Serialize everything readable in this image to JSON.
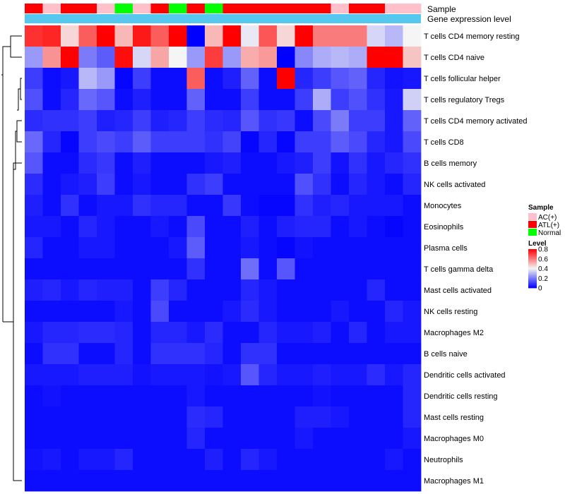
{
  "chart_data": {
    "type": "heatmap",
    "title": "",
    "annotation_labels": {
      "sample": "Sample",
      "gene_expression": "Gene expression level"
    },
    "columns": 22,
    "sample_groups": [
      "ATL(+)",
      "AC(+)",
      "ATL(+)",
      "ATL(+)",
      "AC(+)",
      "Normal",
      "AC(+)",
      "ATL(+)",
      "Normal",
      "ATL(+)",
      "Normal",
      "ATL(+)",
      "ATL(+)",
      "ATL(+)",
      "ATL(+)",
      "ATL(+)",
      "ATL(+)",
      "AC(+)",
      "ATL(+)",
      "ATL(+)",
      "AC(+)",
      "AC(+)"
    ],
    "rows": [
      "T cells CD4 memory resting",
      "T cells CD4 naive",
      "T cells follicular helper",
      "T cells regulatory  Tregs",
      "T cells CD4 memory activated",
      "T cells CD8",
      "B cells memory",
      "NK cells activated",
      "Monocytes",
      "Eosinophils",
      "Plasma cells",
      "T cells gamma delta",
      "Mast cells activated",
      "NK cells resting",
      "Macrophages M2",
      "B cells naive",
      "Dendritic cells activated",
      "Dendritic cells resting",
      "Mast cells resting",
      "Macrophages M0",
      "Neutrophils",
      "Macrophages M1"
    ],
    "values": [
      [
        0.72,
        0.74,
        0.45,
        0.65,
        0.8,
        0.5,
        0.76,
        0.65,
        0.8,
        0.0,
        0.5,
        0.8,
        0.38,
        0.66,
        0.45,
        0.8,
        0.6,
        0.6,
        0.6,
        0.35,
        0.3,
        0.4
      ],
      [
        0.25,
        0.56,
        0.8,
        0.2,
        0.15,
        0.78,
        0.35,
        0.53,
        0.4,
        0.25,
        0.7,
        0.25,
        0.52,
        0.55,
        0.0,
        0.22,
        0.28,
        0.3,
        0.28,
        0.8,
        0.8,
        0.48
      ],
      [
        0.1,
        0.02,
        0.04,
        0.3,
        0.25,
        0.01,
        0.1,
        0.02,
        0.02,
        0.65,
        0.02,
        0.05,
        0.16,
        0.02,
        0.8,
        0.06,
        0.1,
        0.14,
        0.16,
        0.06,
        0.03,
        0.04
      ],
      [
        0.13,
        0.02,
        0.06,
        0.17,
        0.14,
        0.02,
        0.05,
        0.02,
        0.02,
        0.16,
        0.02,
        0.02,
        0.1,
        0.02,
        0.02,
        0.1,
        0.28,
        0.1,
        0.13,
        0.08,
        0.04,
        0.34
      ],
      [
        0.07,
        0.08,
        0.08,
        0.1,
        0.05,
        0.06,
        0.1,
        0.05,
        0.06,
        0.1,
        0.07,
        0.06,
        0.14,
        0.08,
        0.09,
        0.02,
        0.12,
        0.2,
        0.1,
        0.1,
        0.04,
        0.16
      ],
      [
        0.17,
        0.06,
        0.01,
        0.1,
        0.12,
        0.1,
        0.15,
        0.1,
        0.1,
        0.1,
        0.08,
        0.11,
        0.01,
        0.06,
        0.01,
        0.1,
        0.1,
        0.15,
        0.12,
        0.06,
        0.04,
        0.12
      ],
      [
        0.14,
        0.02,
        0.02,
        0.07,
        0.09,
        0.02,
        0.05,
        0.02,
        0.02,
        0.02,
        0.04,
        0.05,
        0.02,
        0.02,
        0.04,
        0.05,
        0.1,
        0.03,
        0.08,
        0.04,
        0.06,
        0.08
      ],
      [
        0.07,
        0.02,
        0.04,
        0.05,
        0.1,
        0.02,
        0.04,
        0.02,
        0.02,
        0.08,
        0.1,
        0.02,
        0.02,
        0.02,
        0.02,
        0.13,
        0.08,
        0.02,
        0.06,
        0.04,
        0.02,
        0.06
      ],
      [
        0.05,
        0.02,
        0.08,
        0.02,
        0.04,
        0.04,
        0.08,
        0.06,
        0.06,
        0.02,
        0.02,
        0.09,
        0.02,
        0.01,
        0.01,
        0.08,
        0.05,
        0.06,
        0.04,
        0.04,
        0.04,
        0.02
      ],
      [
        0.04,
        0.04,
        0.02,
        0.06,
        0.04,
        0.02,
        0.02,
        0.04,
        0.02,
        0.12,
        0.02,
        0.02,
        0.05,
        0.02,
        0.05,
        0.06,
        0.06,
        0.02,
        0.04,
        0.02,
        0.01,
        0.02
      ],
      [
        0.06,
        0.02,
        0.02,
        0.04,
        0.04,
        0.02,
        0.02,
        0.02,
        0.04,
        0.15,
        0.02,
        0.02,
        0.04,
        0.02,
        0.01,
        0.03,
        0.02,
        0.02,
        0.02,
        0.02,
        0.02,
        0.02
      ],
      [
        0.02,
        0.02,
        0.02,
        0.02,
        0.02,
        0.02,
        0.02,
        0.02,
        0.02,
        0.08,
        0.02,
        0.02,
        0.18,
        0.02,
        0.14,
        0.02,
        0.02,
        0.02,
        0.02,
        0.02,
        0.02,
        0.02
      ],
      [
        0.05,
        0.06,
        0.04,
        0.06,
        0.05,
        0.05,
        0.02,
        0.1,
        0.06,
        0.02,
        0.02,
        0.02,
        0.06,
        0.04,
        0.02,
        0.02,
        0.02,
        0.02,
        0.02,
        0.06,
        0.02,
        0.02
      ],
      [
        0.02,
        0.02,
        0.02,
        0.02,
        0.02,
        0.04,
        0.02,
        0.12,
        0.02,
        0.02,
        0.02,
        0.04,
        0.07,
        0.04,
        0.02,
        0.02,
        0.02,
        0.04,
        0.02,
        0.02,
        0.06,
        0.04
      ],
      [
        0.04,
        0.06,
        0.06,
        0.07,
        0.07,
        0.06,
        0.02,
        0.06,
        0.06,
        0.04,
        0.07,
        0.02,
        0.02,
        0.06,
        0.04,
        0.04,
        0.05,
        0.02,
        0.06,
        0.02,
        0.04,
        0.04
      ],
      [
        0.02,
        0.08,
        0.08,
        0.02,
        0.02,
        0.06,
        0.02,
        0.08,
        0.08,
        0.08,
        0.06,
        0.02,
        0.08,
        0.08,
        0.02,
        0.02,
        0.02,
        0.02,
        0.02,
        0.02,
        0.02,
        0.02
      ],
      [
        0.04,
        0.04,
        0.04,
        0.05,
        0.05,
        0.05,
        0.03,
        0.04,
        0.04,
        0.04,
        0.03,
        0.04,
        0.14,
        0.06,
        0.04,
        0.04,
        0.05,
        0.04,
        0.04,
        0.07,
        0.04,
        0.06
      ],
      [
        0.02,
        0.03,
        0.02,
        0.02,
        0.02,
        0.02,
        0.02,
        0.02,
        0.02,
        0.04,
        0.02,
        0.02,
        0.02,
        0.02,
        0.02,
        0.02,
        0.03,
        0.02,
        0.02,
        0.02,
        0.02,
        0.06
      ],
      [
        0.02,
        0.02,
        0.02,
        0.02,
        0.02,
        0.02,
        0.02,
        0.02,
        0.02,
        0.07,
        0.06,
        0.02,
        0.02,
        0.02,
        0.02,
        0.05,
        0.05,
        0.04,
        0.02,
        0.02,
        0.02,
        0.06
      ],
      [
        0.02,
        0.02,
        0.02,
        0.02,
        0.02,
        0.02,
        0.02,
        0.02,
        0.02,
        0.06,
        0.02,
        0.02,
        0.02,
        0.02,
        0.02,
        0.04,
        0.02,
        0.02,
        0.02,
        0.02,
        0.02,
        0.04
      ],
      [
        0.03,
        0.04,
        0.02,
        0.04,
        0.04,
        0.06,
        0.02,
        0.02,
        0.02,
        0.02,
        0.05,
        0.02,
        0.06,
        0.04,
        0.02,
        0.02,
        0.02,
        0.02,
        0.02,
        0.02,
        0.04,
        0.02
      ],
      [
        0.02,
        0.02,
        0.02,
        0.02,
        0.02,
        0.02,
        0.02,
        0.02,
        0.02,
        0.02,
        0.02,
        0.02,
        0.02,
        0.02,
        0.02,
        0.02,
        0.02,
        0.02,
        0.02,
        0.02,
        0.02,
        0.02
      ]
    ],
    "legend_sample": {
      "title": "Sample",
      "entries": [
        {
          "label": "AC(+)",
          "color": "#ffc0cb"
        },
        {
          "label": "ATL(+)",
          "color": "#ff0000"
        },
        {
          "label": "Normal",
          "color": "#00ff00"
        }
      ]
    },
    "legend_level": {
      "title": "Level",
      "ticks": [
        "0.8",
        "0.6",
        "0.4",
        "0.2",
        "0"
      ],
      "range": [
        0,
        0.8
      ],
      "colors": {
        "low": "#0000ff",
        "mid": "#f5f5f5",
        "high": "#ff0000"
      }
    },
    "gene_expression_color": "#56c7ee",
    "grid": false,
    "legend_position": "right"
  }
}
